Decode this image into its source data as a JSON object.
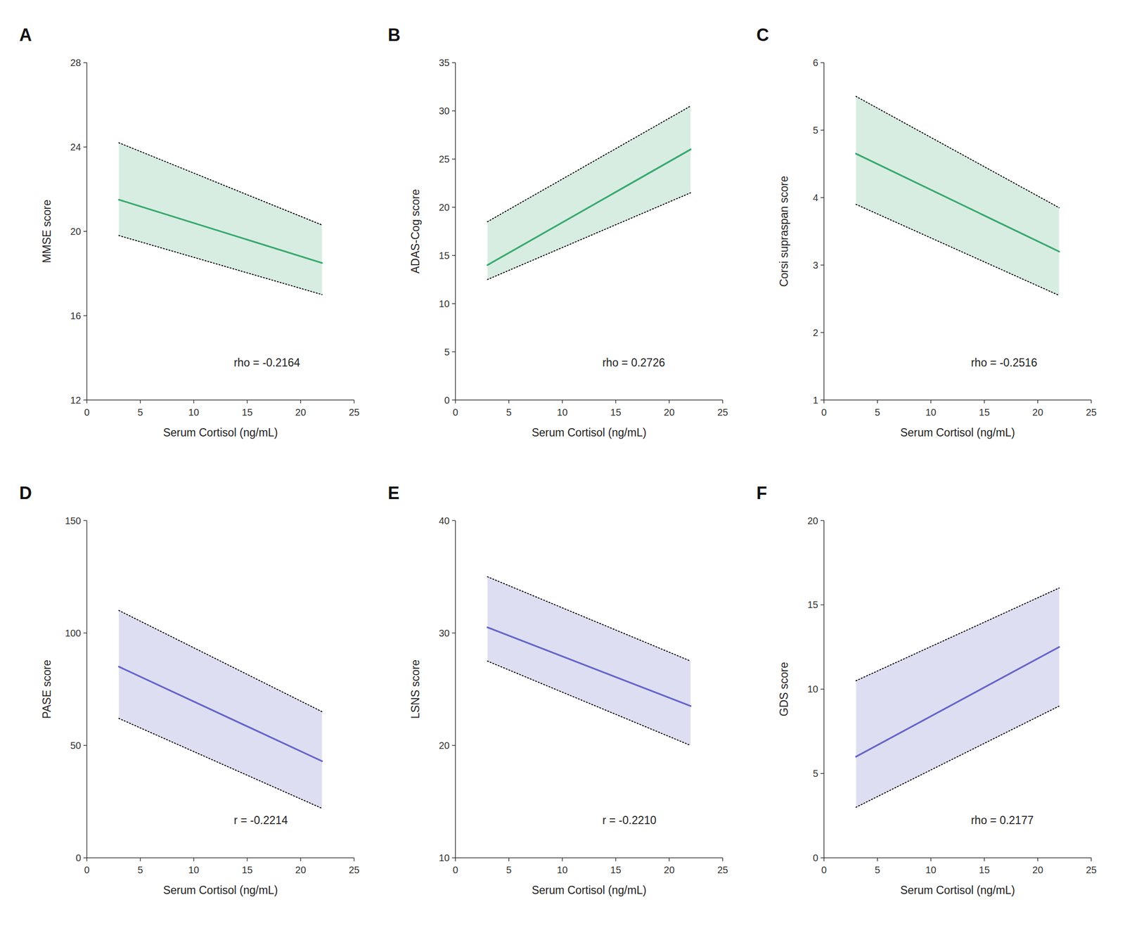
{
  "chart_data": [
    {
      "type": "line",
      "panel_label": "A",
      "xlabel": "Serum Cortisol (ng/mL)",
      "ylabel": "MMSE score",
      "annotation": "rho = -0.2164",
      "x": [
        3,
        22
      ],
      "series": [
        {
          "type": "area",
          "color": "#c8e6d5",
          "line_style": "dotted",
          "upper": [
            24.2,
            20.3
          ],
          "lower": [
            19.8,
            17.0
          ]
        },
        {
          "type": "line",
          "color": "#3aaa6e",
          "values": [
            21.5,
            18.5
          ]
        }
      ],
      "xlim": [
        0,
        25
      ],
      "xticks": [
        0,
        5,
        10,
        15,
        20,
        25
      ],
      "ylim": [
        12,
        28
      ],
      "yticks": [
        12,
        16,
        20,
        24,
        28
      ],
      "grid": false
    },
    {
      "type": "line",
      "panel_label": "B",
      "xlabel": "Serum Cortisol (ng/mL)",
      "ylabel": "ADAS-Cog score",
      "annotation": "rho = 0.2726",
      "x": [
        3,
        22
      ],
      "series": [
        {
          "type": "area",
          "color": "#c8e6d5",
          "line_style": "dotted",
          "upper": [
            18.5,
            30.5
          ],
          "lower": [
            12.5,
            21.5
          ]
        },
        {
          "type": "line",
          "color": "#3aaa6e",
          "values": [
            14.0,
            26.0
          ]
        }
      ],
      "xlim": [
        0,
        25
      ],
      "xticks": [
        0,
        5,
        10,
        15,
        20,
        25
      ],
      "ylim": [
        0,
        35
      ],
      "yticks": [
        0,
        5,
        10,
        15,
        20,
        25,
        30,
        35
      ],
      "grid": false
    },
    {
      "type": "line",
      "panel_label": "C",
      "xlabel": "Serum Cortisol (ng/mL)",
      "ylabel": "Corsi supraspan score",
      "annotation": "rho = -0.2516",
      "x": [
        3,
        22
      ],
      "series": [
        {
          "type": "area",
          "color": "#c8e6d5",
          "line_style": "dotted",
          "upper": [
            5.5,
            3.85
          ],
          "lower": [
            3.9,
            2.55
          ]
        },
        {
          "type": "line",
          "color": "#3aaa6e",
          "values": [
            4.65,
            3.2
          ]
        }
      ],
      "xlim": [
        0,
        25
      ],
      "xticks": [
        0,
        5,
        10,
        15,
        20,
        25
      ],
      "ylim": [
        1,
        6
      ],
      "yticks": [
        1,
        2,
        3,
        4,
        5,
        6
      ],
      "grid": false
    },
    {
      "type": "line",
      "panel_label": "D",
      "xlabel": "Serum Cortisol (ng/mL)",
      "ylabel": "PASE score",
      "annotation": "r = -0.2214",
      "x": [
        3,
        22
      ],
      "series": [
        {
          "type": "area",
          "color": "#d0d0ee",
          "line_style": "dotted",
          "upper": [
            110.0,
            65.0
          ],
          "lower": [
            62.0,
            22.0
          ]
        },
        {
          "type": "line",
          "color": "#6666cc",
          "values": [
            85.0,
            43.0
          ]
        }
      ],
      "xlim": [
        0,
        25
      ],
      "xticks": [
        0,
        5,
        10,
        15,
        20,
        25
      ],
      "ylim": [
        0,
        150
      ],
      "yticks": [
        0,
        50,
        100,
        150
      ],
      "grid": false
    },
    {
      "type": "line",
      "panel_label": "E",
      "xlabel": "Serum Cortisol (ng/mL)",
      "ylabel": "LSNS score",
      "annotation": "r = -0.2210",
      "x": [
        3,
        22
      ],
      "series": [
        {
          "type": "area",
          "color": "#d0d0ee",
          "line_style": "dotted",
          "upper": [
            35.0,
            27.5
          ],
          "lower": [
            27.5,
            20.0
          ]
        },
        {
          "type": "line",
          "color": "#6666cc",
          "values": [
            30.5,
            23.5
          ]
        }
      ],
      "xlim": [
        0,
        25
      ],
      "xticks": [
        0,
        5,
        10,
        15,
        20,
        25
      ],
      "ylim": [
        10,
        40
      ],
      "yticks": [
        10,
        20,
        30,
        40
      ],
      "grid": false
    },
    {
      "type": "line",
      "panel_label": "F",
      "xlabel": "Serum Cortisol (ng/mL)",
      "ylabel": "GDS score",
      "annotation": "rho = 0.2177",
      "x": [
        3,
        22
      ],
      "series": [
        {
          "type": "area",
          "color": "#d0d0ee",
          "line_style": "dotted",
          "upper": [
            10.5,
            16.0
          ],
          "lower": [
            3.0,
            9.0
          ]
        },
        {
          "type": "line",
          "color": "#6666cc",
          "values": [
            6.0,
            12.5
          ]
        }
      ],
      "xlim": [
        0,
        25
      ],
      "xticks": [
        0,
        5,
        10,
        15,
        20,
        25
      ],
      "ylim": [
        0,
        20
      ],
      "yticks": [
        0,
        5,
        10,
        15,
        20
      ],
      "grid": false
    }
  ]
}
